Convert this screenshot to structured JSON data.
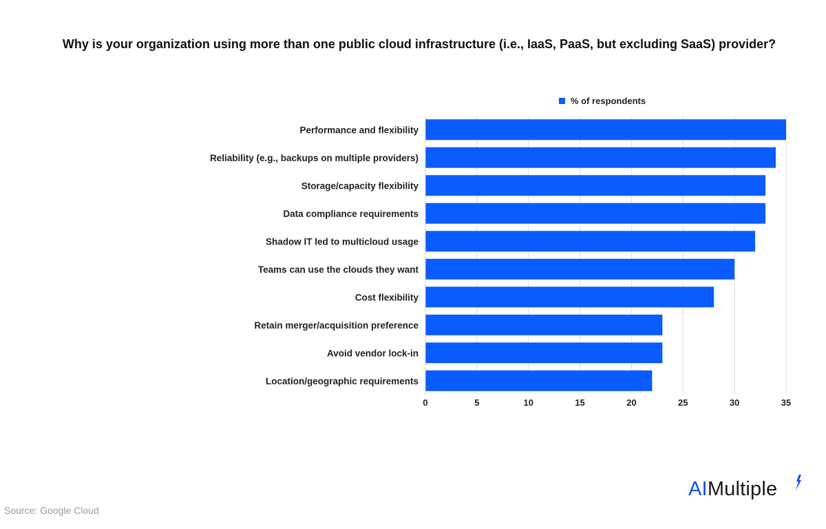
{
  "chart_data": {
    "type": "bar",
    "orientation": "horizontal",
    "title": "Why is your organization using more than one public cloud infrastructure (i.e., IaaS, PaaS, but excluding SaaS) provider?",
    "categories": [
      "Performance and flexibility",
      "Reliability (e.g., backups on multiple providers)",
      "Storage/capacity flexibility",
      "Data compliance requirements",
      "Shadow IT led to multicloud usage",
      "Teams can use the clouds they want",
      "Cost flexibility",
      "Retain merger/acquisition preference",
      "Avoid vendor lock-in",
      "Location/geographic requirements"
    ],
    "series": [
      {
        "name": "% of respondents",
        "values": [
          35,
          34,
          33,
          33,
          32,
          30,
          28,
          23,
          23,
          22
        ]
      }
    ],
    "xlim": [
      0,
      35
    ],
    "xticks": [
      "0",
      "5",
      "10",
      "15",
      "20",
      "25",
      "30",
      "35"
    ],
    "grid": "vertical",
    "legend_position": "top",
    "bar_color": "#0a5cff"
  },
  "source": "Source: Google Cloud",
  "brand": {
    "ai": "AI",
    "rest": "Multiple",
    "accent_color": "#0a4fe6"
  }
}
